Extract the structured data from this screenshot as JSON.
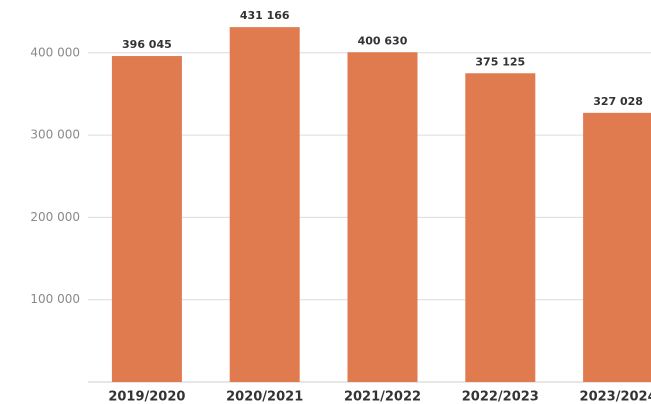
{
  "chart_data": {
    "type": "bar",
    "categories": [
      "2019/2020",
      "2020/2021",
      "2021/2022",
      "2022/2023",
      "2023/2024"
    ],
    "values": [
      396045,
      431166,
      400630,
      375125,
      327028
    ],
    "value_labels": [
      "396 045",
      "431 166",
      "400 630",
      "375 125",
      "327 028"
    ],
    "color": "#e07a4f",
    "ylim": [
      0,
      460000
    ],
    "yticks": [
      {
        "value": 100000,
        "label": "100 000"
      },
      {
        "value": 200000,
        "label": "200 000"
      },
      {
        "value": 300000,
        "label": "300 000"
      },
      {
        "value": 400000,
        "label": "400 000"
      }
    ],
    "grid": true
  }
}
